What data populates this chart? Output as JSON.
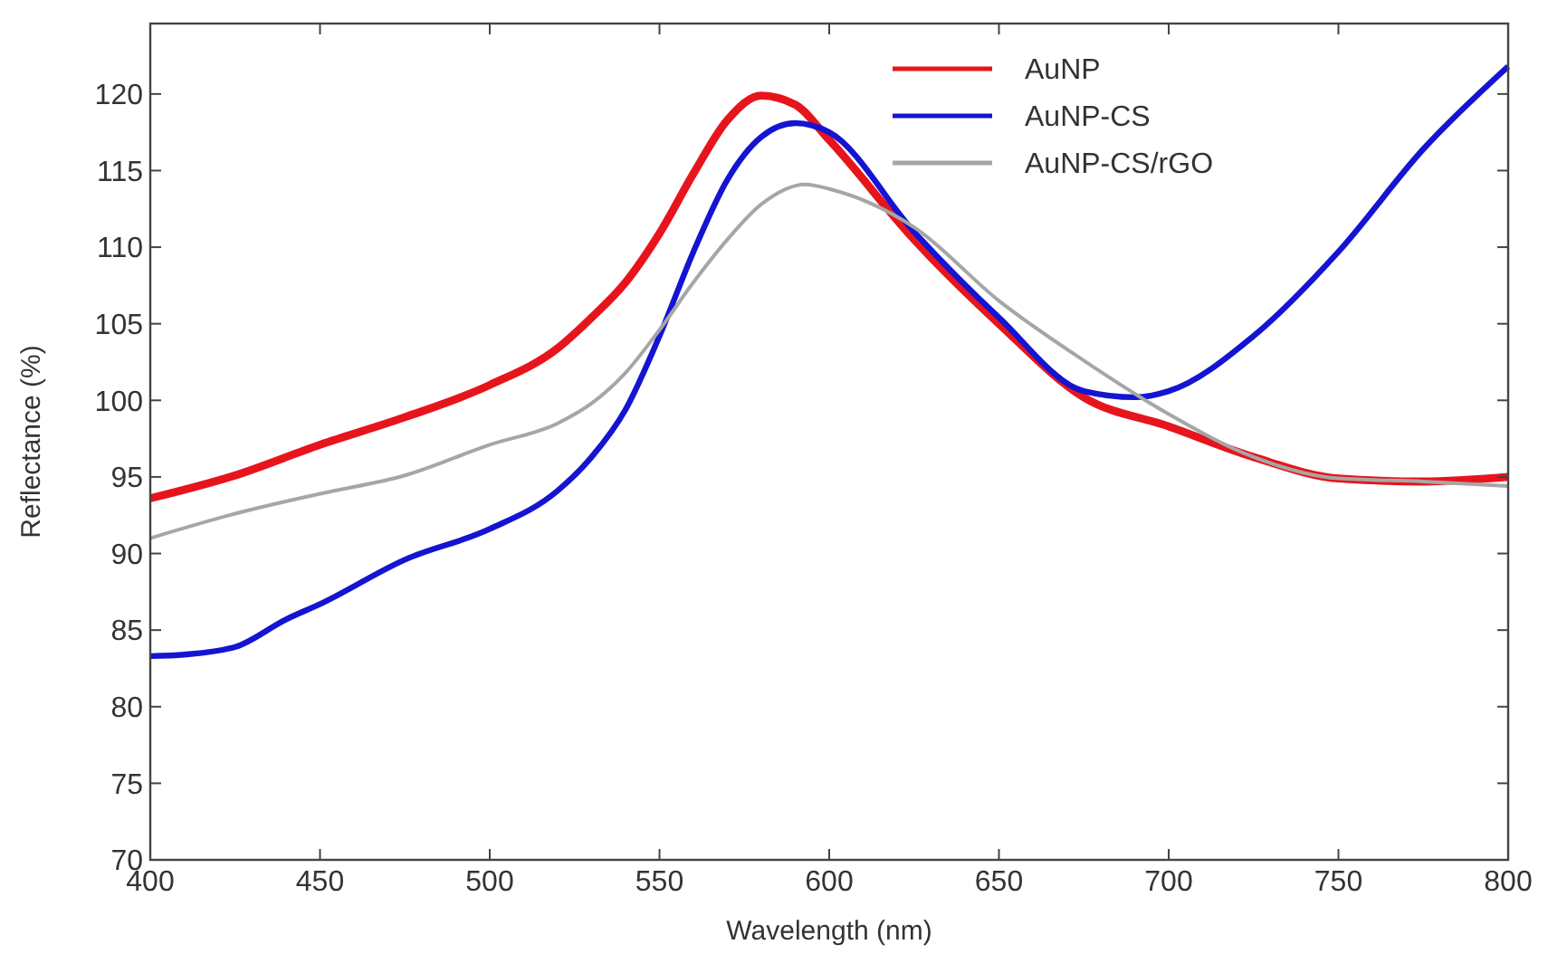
{
  "chart_data": {
    "type": "line",
    "xlabel": "Wavelength (nm)",
    "ylabel": "Reflectance (%)",
    "xlim": [
      400,
      800
    ],
    "ylim": [
      70,
      124.6
    ],
    "xticks": [
      400,
      450,
      500,
      550,
      600,
      650,
      700,
      750,
      800
    ],
    "yticks": [
      70,
      75,
      80,
      85,
      90,
      95,
      100,
      105,
      110,
      115,
      120
    ],
    "grid": false,
    "legend": "top right",
    "marker": "none",
    "line_style": "solid",
    "series": [
      {
        "name": "AuNP",
        "color": "#e8141c",
        "x": [
          400,
          425,
          450,
          475,
          500,
          520,
          530,
          540,
          550,
          560,
          570,
          580,
          590,
          600,
          625,
          650,
          675,
          700,
          725,
          750,
          775,
          800
        ],
        "values": [
          93.6,
          95.1,
          97.1,
          98.9,
          101,
          103.4,
          105.4,
          107.7,
          110.9,
          114.8,
          118.3,
          119.9,
          119.3,
          117,
          110.5,
          105,
          100.2,
          98.3,
          96.3,
          94.9,
          94.7,
          95
        ]
      },
      {
        "name": "AuNP-CS",
        "color": "#1414d2",
        "x": [
          400,
          410,
          425,
          440,
          450,
          475,
          500,
          520,
          530,
          540,
          550,
          560,
          570,
          580,
          590,
          600,
          625,
          650,
          675,
          690,
          700,
          725,
          750,
          775,
          800
        ],
        "values": [
          83.3,
          83.4,
          83.9,
          85.7,
          86.7,
          89.6,
          91.6,
          94.1,
          96.3,
          99.4,
          104.2,
          109.7,
          114.4,
          117.2,
          118.1,
          117.5,
          111,
          105.4,
          100.6,
          100.2,
          100.6,
          104.2,
          109.7,
          116.4,
          121.8
        ]
      },
      {
        "name": "AuNP-CS/rGO",
        "color": "#a6a6a6",
        "x": [
          400,
          425,
          450,
          475,
          500,
          520,
          530,
          540,
          550,
          560,
          570,
          580,
          593,
          600,
          625,
          650,
          675,
          700,
          725,
          750,
          775,
          800
        ],
        "values": [
          91,
          92.6,
          93.9,
          95.1,
          97.1,
          98.5,
          99.8,
          101.8,
          104.6,
          107.7,
          110.5,
          112.8,
          114.1,
          113.8,
          111.3,
          106.5,
          102.6,
          99.1,
          96.3,
          94.9,
          94.7,
          94.4
        ]
      }
    ]
  }
}
